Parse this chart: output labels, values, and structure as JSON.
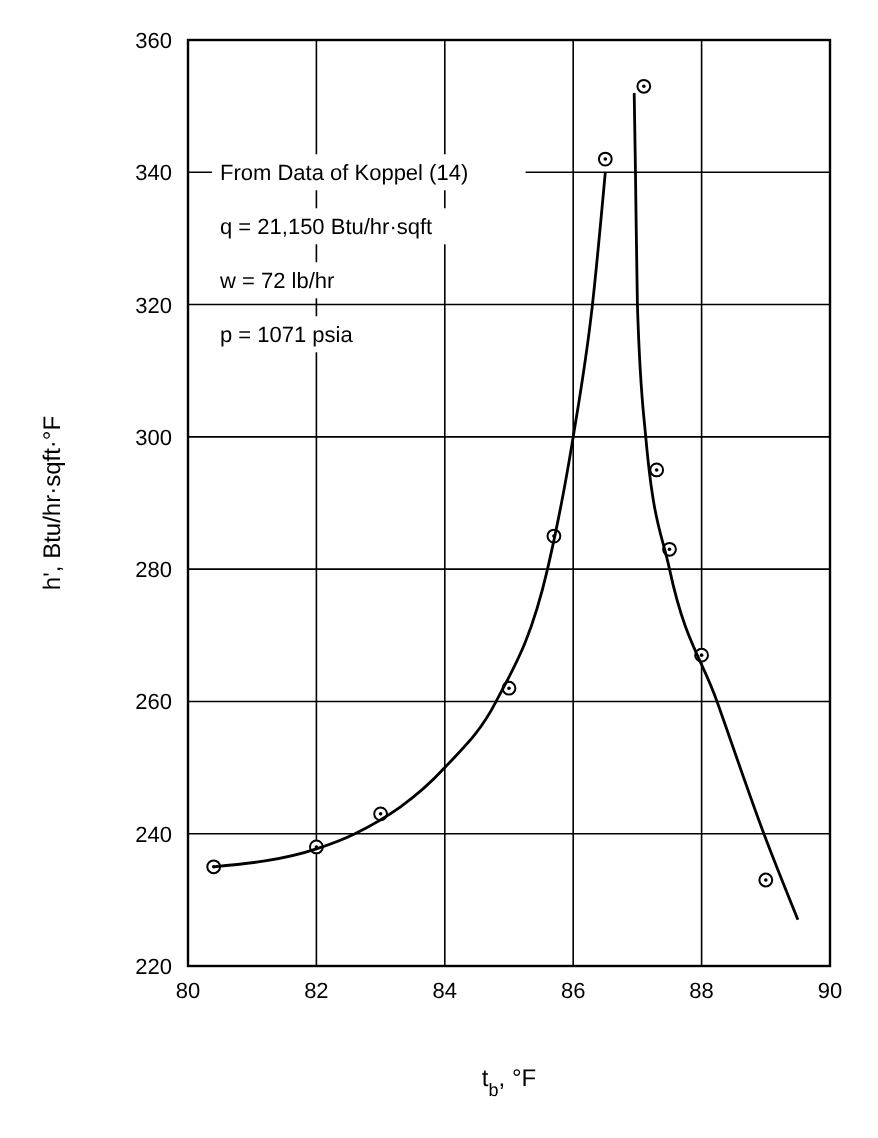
{
  "chart_data": {
    "type": "scatter",
    "xlabel": "t$_{b}$, °F",
    "ylabel": "h', Btu/hr·sqft·°F",
    "xlim": [
      80,
      90
    ],
    "ylim": [
      220,
      360
    ],
    "xticks": [
      80,
      82,
      84,
      86,
      88,
      90
    ],
    "yticks": [
      220,
      240,
      260,
      280,
      300,
      320,
      340,
      360
    ],
    "grid": true,
    "annotations": [
      "From Data of Koppel (14)",
      "q = 21,150 Btu/hr·sqft",
      "w = 72 lb/hr",
      "p = 1071 psia"
    ],
    "series": [
      {
        "marker": "circle",
        "color": "#000000",
        "x": [
          80.4,
          82,
          83,
          85,
          85.7,
          86.5,
          87.1,
          87.3,
          87.5,
          88,
          89
        ],
        "values": [
          235,
          238,
          243,
          262,
          285,
          342,
          353,
          295,
          283,
          267,
          233
        ]
      },
      {
        "type": "line",
        "marker": "none",
        "line_style": "solid",
        "color": "#000000",
        "x": [
          80.4,
          82,
          82.6,
          84,
          84.8,
          85.6,
          86,
          86.3,
          86.5
        ],
        "values": [
          235,
          237.7,
          240,
          250,
          260,
          280,
          300,
          320,
          340
        ]
      },
      {
        "type": "line",
        "marker": "none",
        "line_style": "solid",
        "color": "#000000",
        "x": [
          86.95,
          86.97,
          87,
          87.13,
          87.5,
          88.24,
          88.97,
          89.5
        ],
        "values": [
          352,
          340,
          320,
          300,
          280,
          260,
          240,
          227
        ]
      }
    ]
  }
}
